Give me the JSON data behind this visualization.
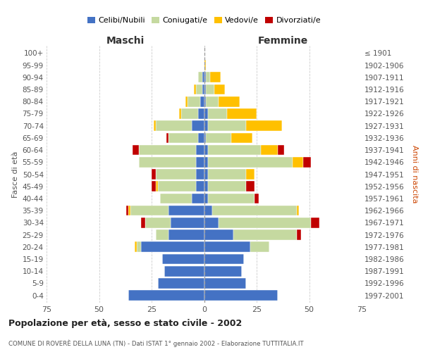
{
  "age_groups": [
    "0-4",
    "5-9",
    "10-14",
    "15-19",
    "20-24",
    "25-29",
    "30-34",
    "35-39",
    "40-44",
    "45-49",
    "50-54",
    "55-59",
    "60-64",
    "65-69",
    "70-74",
    "75-79",
    "80-84",
    "85-89",
    "90-94",
    "95-99",
    "100+"
  ],
  "birth_years": [
    "1997-2001",
    "1992-1996",
    "1987-1991",
    "1982-1986",
    "1977-1981",
    "1972-1976",
    "1967-1971",
    "1962-1966",
    "1957-1961",
    "1952-1956",
    "1947-1951",
    "1942-1946",
    "1937-1941",
    "1932-1936",
    "1927-1931",
    "1922-1926",
    "1917-1921",
    "1912-1916",
    "1907-1911",
    "1902-1906",
    "≤ 1901"
  ],
  "maschi": {
    "celibi": [
      36,
      22,
      19,
      20,
      30,
      17,
      16,
      17,
      6,
      4,
      4,
      4,
      4,
      3,
      6,
      3,
      2,
      1,
      1,
      0,
      0
    ],
    "coniugati": [
      0,
      0,
      0,
      0,
      2,
      6,
      12,
      18,
      15,
      18,
      19,
      27,
      27,
      14,
      17,
      8,
      6,
      3,
      2,
      0,
      0
    ],
    "vedovi": [
      0,
      0,
      0,
      0,
      1,
      0,
      0,
      1,
      0,
      1,
      0,
      0,
      0,
      0,
      1,
      1,
      1,
      1,
      0,
      0,
      0
    ],
    "divorziati": [
      0,
      0,
      0,
      0,
      0,
      0,
      2,
      1,
      0,
      2,
      2,
      0,
      3,
      1,
      0,
      0,
      0,
      0,
      0,
      0,
      0
    ]
  },
  "femmine": {
    "nubili": [
      35,
      20,
      18,
      19,
      22,
      14,
      7,
      4,
      2,
      2,
      2,
      2,
      2,
      1,
      2,
      2,
      1,
      1,
      1,
      0,
      0
    ],
    "coniugate": [
      0,
      0,
      0,
      0,
      9,
      30,
      44,
      40,
      22,
      18,
      18,
      40,
      25,
      12,
      18,
      9,
      6,
      4,
      2,
      0,
      0
    ],
    "vedove": [
      0,
      0,
      0,
      0,
      0,
      0,
      0,
      1,
      0,
      0,
      4,
      5,
      8,
      10,
      17,
      14,
      10,
      5,
      5,
      1,
      0
    ],
    "divorziate": [
      0,
      0,
      0,
      0,
      0,
      2,
      4,
      0,
      2,
      4,
      0,
      4,
      3,
      0,
      0,
      0,
      0,
      0,
      0,
      0,
      0
    ]
  },
  "colors": {
    "celibi": "#4472c4",
    "coniugati": "#c5d9a0",
    "vedovi": "#ffc000",
    "divorziati": "#c00000"
  },
  "title": "Popolazione per età, sesso e stato civile - 2002",
  "subtitle": "COMUNE DI ROVERÈ DELLA LUNA (TN) - Dati ISTAT 1° gennaio 2002 - Elaborazione TUTTITALIA.IT",
  "xlabel_left": "Maschi",
  "xlabel_right": "Femmine",
  "ylabel_left": "Fasce di età",
  "ylabel_right": "Anni di nascita",
  "xlim": 75,
  "legend_labels": [
    "Celibi/Nubili",
    "Coniugati/e",
    "Vedovi/e",
    "Divorziati/e"
  ],
  "bg_color": "#ffffff",
  "grid_color": "#cccccc",
  "bar_height": 0.85
}
